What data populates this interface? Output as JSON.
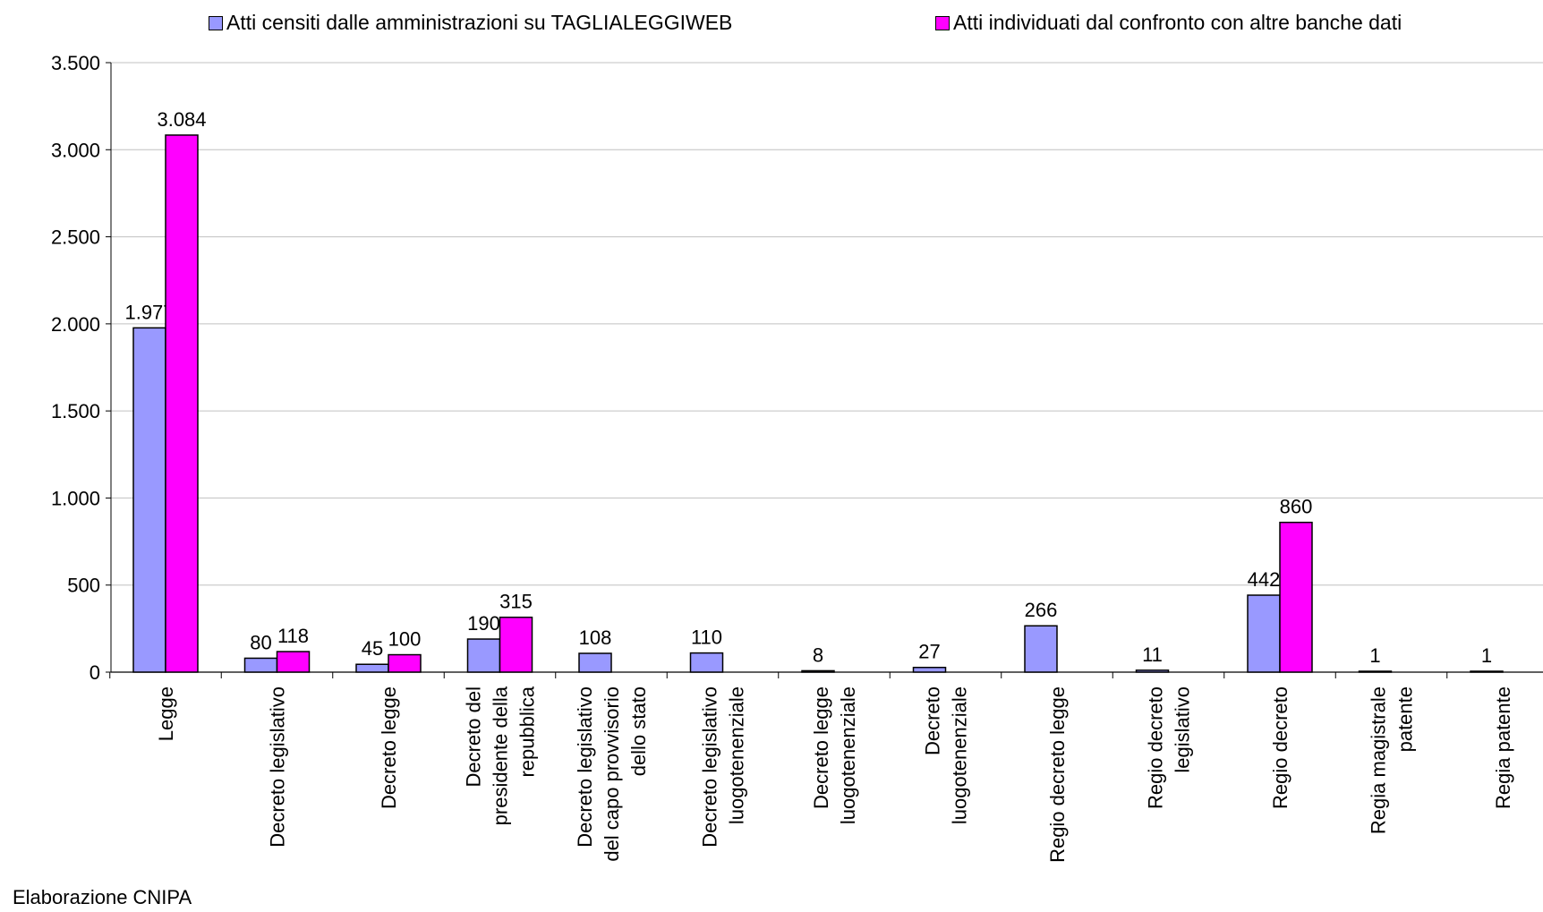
{
  "chart_data": {
    "type": "bar",
    "title": "",
    "xlabel": "",
    "ylabel": "",
    "ylim": [
      0,
      3500
    ],
    "yticks": [
      0,
      500,
      1000,
      1500,
      2000,
      2500,
      3000,
      3500
    ],
    "ytick_labels": [
      "0",
      "500",
      "1.000",
      "1.500",
      "2.000",
      "2.500",
      "3.000",
      "3.500"
    ],
    "grid": true,
    "legend_position": "top",
    "categories": [
      "Legge",
      "Decreto legislativo",
      "Decreto legge",
      "Decreto del presidente della repubblica",
      "Decreto legislativo del capo provvisorio dello stato",
      "Decreto legislativo luogotenenziale",
      "Decreto legge luogotenenziale",
      "Decreto luogotenenziale",
      "Regio decreto legge",
      "Regio decreto legislativo",
      "Regio decreto",
      "Regia magistrale patente",
      "Regia patente"
    ],
    "category_label_lines": [
      [
        "Legge"
      ],
      [
        "Decreto legislativo"
      ],
      [
        "Decreto legge"
      ],
      [
        "Decreto del",
        "presidente della",
        "repubblica"
      ],
      [
        "Decreto legislativo",
        "del capo provvisorio",
        "dello stato"
      ],
      [
        "Decreto legislativo",
        "luogotenenziale"
      ],
      [
        "Decreto legge",
        "luogotenenziale"
      ],
      [
        "Decreto",
        "luogotenenziale"
      ],
      [
        "Regio decreto legge"
      ],
      [
        "Regio decreto",
        "legislativo"
      ],
      [
        "Regio decreto"
      ],
      [
        "Regia magistrale",
        "patente"
      ],
      [
        "Regia patente"
      ]
    ],
    "series": [
      {
        "name": "Atti censiti dalle amministrazioni su TAGLIALEGGIWEB",
        "color": "#9999ff",
        "values": [
          1977,
          80,
          45,
          190,
          108,
          110,
          8,
          27,
          266,
          11,
          442,
          1,
          1
        ],
        "value_labels": [
          "1.977",
          "80",
          "45",
          "190",
          "108",
          "110",
          "8",
          "27",
          "266",
          "11",
          "442",
          "1",
          "1"
        ]
      },
      {
        "name": "Atti individuati dal confronto con altre banche dati",
        "color": "#ff00ff",
        "values": [
          3084,
          118,
          100,
          315,
          null,
          null,
          null,
          null,
          null,
          null,
          860,
          null,
          null
        ],
        "value_labels": [
          "3.084",
          "118",
          "100",
          "315",
          null,
          null,
          null,
          null,
          null,
          null,
          "860",
          null,
          null
        ]
      }
    ]
  },
  "legend": {
    "items": [
      {
        "label": "Atti censiti dalle amministrazioni su TAGLIALEGGIWEB",
        "color": "#9999ff"
      },
      {
        "label": "Atti individuati dal confronto con altre banche dati",
        "color": "#ff00ff"
      }
    ]
  },
  "source_note": "Elaborazione CNIPA"
}
